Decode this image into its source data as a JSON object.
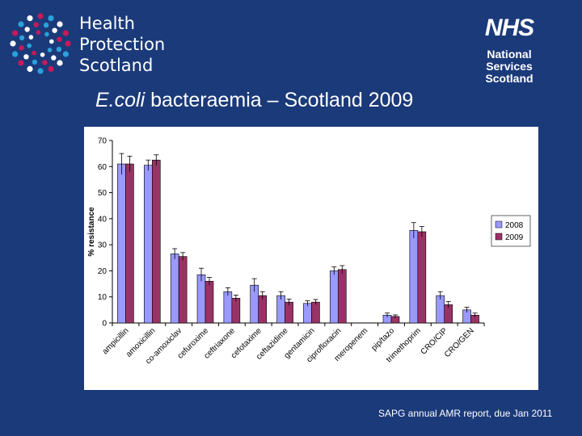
{
  "header": {
    "hps_logo": {
      "lines": [
        "Health",
        "Protection",
        "Scotland"
      ],
      "dot_colors": [
        "#c8195a",
        "#2aa1dc",
        "#ffffff"
      ]
    },
    "nhs_logo": {
      "mark": "NHS",
      "org_lines": [
        "National",
        "Services",
        "Scotland"
      ]
    },
    "title_italic": "E.coli",
    "title_rest": " bacteraemia – Scotland 2009"
  },
  "footnote": "SAPG annual AMR report, due Jan 2011",
  "colors": {
    "background": "#1b3a7a",
    "series_2008": "#9999ff",
    "series_2009": "#993366"
  },
  "chart_data": {
    "type": "bar",
    "title": "",
    "xlabel": "",
    "ylabel": "% resistance",
    "ylim": [
      0,
      70
    ],
    "yticks": [
      0,
      10,
      20,
      30,
      40,
      50,
      60,
      70
    ],
    "legend_position": "right",
    "categories": [
      "ampicillin",
      "amoxicillin",
      "co-amoxiclav",
      "cefuroxime",
      "ceftriaxone",
      "cefotaxime",
      "ceftazidime",
      "gentamicin",
      "ciprofloxacin",
      "meropenem",
      "pip/tazo",
      "trimethoprim",
      "CRO/CIP",
      "CRO/GEN"
    ],
    "series": [
      {
        "name": "2008",
        "values": [
          61,
          60.5,
          26.5,
          18.5,
          12,
          14.5,
          10.5,
          7.5,
          20,
          0,
          3,
          35.5,
          10.5,
          5
        ],
        "error": [
          4,
          2,
          2,
          2.5,
          1.5,
          2.5,
          1.5,
          1,
          1.5,
          0,
          0.8,
          3,
          1.5,
          1
        ]
      },
      {
        "name": "2009",
        "values": [
          61,
          62.5,
          25.5,
          16,
          9.5,
          10.5,
          8,
          8,
          20.5,
          0,
          2.5,
          35,
          7,
          3
        ],
        "error": [
          3,
          2,
          1.5,
          1.5,
          1.2,
          1.5,
          1.2,
          1,
          1.5,
          0,
          0.6,
          2,
          1.2,
          0.8
        ]
      }
    ]
  }
}
